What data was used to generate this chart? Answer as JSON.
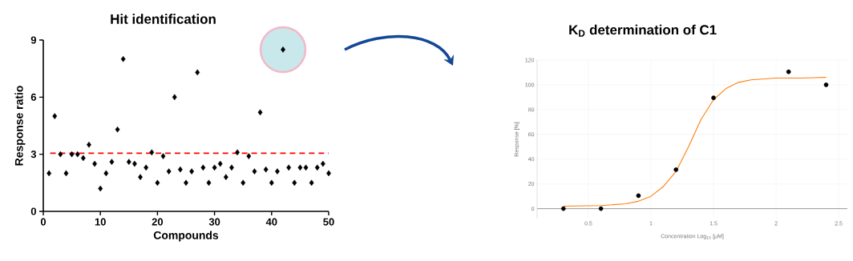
{
  "chart_data": [
    {
      "type": "scatter",
      "title": "Hit identification",
      "xlabel": "Compounds",
      "ylabel": "Response ratio",
      "x": [
        1,
        2,
        3,
        4,
        5,
        6,
        7,
        8,
        9,
        10,
        11,
        12,
        13,
        14,
        15,
        16,
        17,
        18,
        19,
        20,
        21,
        22,
        23,
        24,
        25,
        26,
        27,
        28,
        29,
        30,
        31,
        32,
        33,
        34,
        35,
        36,
        37,
        38,
        39,
        40,
        41,
        42,
        43,
        44,
        45,
        46,
        47,
        48,
        49,
        50
      ],
      "values": [
        2.0,
        5.0,
        3.0,
        2.0,
        3.0,
        3.0,
        2.8,
        3.5,
        2.5,
        1.2,
        2.0,
        2.6,
        4.3,
        8.0,
        2.6,
        2.5,
        1.8,
        2.3,
        3.1,
        1.5,
        2.9,
        2.1,
        6.0,
        2.2,
        1.5,
        2.1,
        7.3,
        2.3,
        1.5,
        2.3,
        2.5,
        1.8,
        2.3,
        3.1,
        1.5,
        2.9,
        2.1,
        5.2,
        2.2,
        1.5,
        2.1,
        8.5,
        2.3,
        1.5,
        2.3,
        2.3,
        1.5,
        2.3,
        2.5,
        2.0
      ],
      "color": "#000000",
      "marker": "diamond",
      "grid": false,
      "ref_lines": [
        {
          "axis": "y",
          "value": 3.05,
          "color": "#ff0000",
          "line_style": "dashed"
        }
      ],
      "xlim": [
        0,
        50
      ],
      "ylim": [
        0,
        9
      ],
      "xticks": [
        0,
        10,
        20,
        30,
        40,
        50
      ],
      "yticks": [
        0,
        3,
        6,
        9
      ]
    },
    {
      "type": "scatter",
      "title": "K$_{D}$ determination of C1",
      "xlabel": "Concentration Log$_{10}$ [µM]",
      "ylabel": "Response [%]",
      "series": [
        {
          "type": "scatter",
          "color": "#000000",
          "marker": "circle",
          "x": [
            0.3,
            0.6,
            0.9,
            1.2,
            1.5,
            2.1,
            2.4
          ],
          "values": [
            0,
            0,
            10.5,
            31.5,
            89.5,
            110.5,
            100
          ]
        },
        {
          "type": "line",
          "color": "#ff7f0e",
          "marker": "none",
          "x": [
            0.3,
            0.6,
            0.8,
            0.9,
            1.0,
            1.1,
            1.2,
            1.3,
            1.4,
            1.5,
            1.6,
            1.7,
            1.8,
            2.0,
            2.2,
            2.4
          ],
          "values": [
            2,
            2.5,
            4,
            6,
            10,
            18,
            30,
            50,
            72,
            88,
            97,
            102,
            104,
            105.5,
            105.5,
            106
          ]
        }
      ],
      "grid": true,
      "xlim": [
        0.09,
        2.57
      ],
      "ylim": [
        -8,
        120
      ],
      "xticks": [
        0.5,
        1,
        1.5,
        2,
        2.5
      ],
      "yticks": [
        0,
        20,
        40,
        60,
        80,
        100,
        120
      ]
    }
  ]
}
